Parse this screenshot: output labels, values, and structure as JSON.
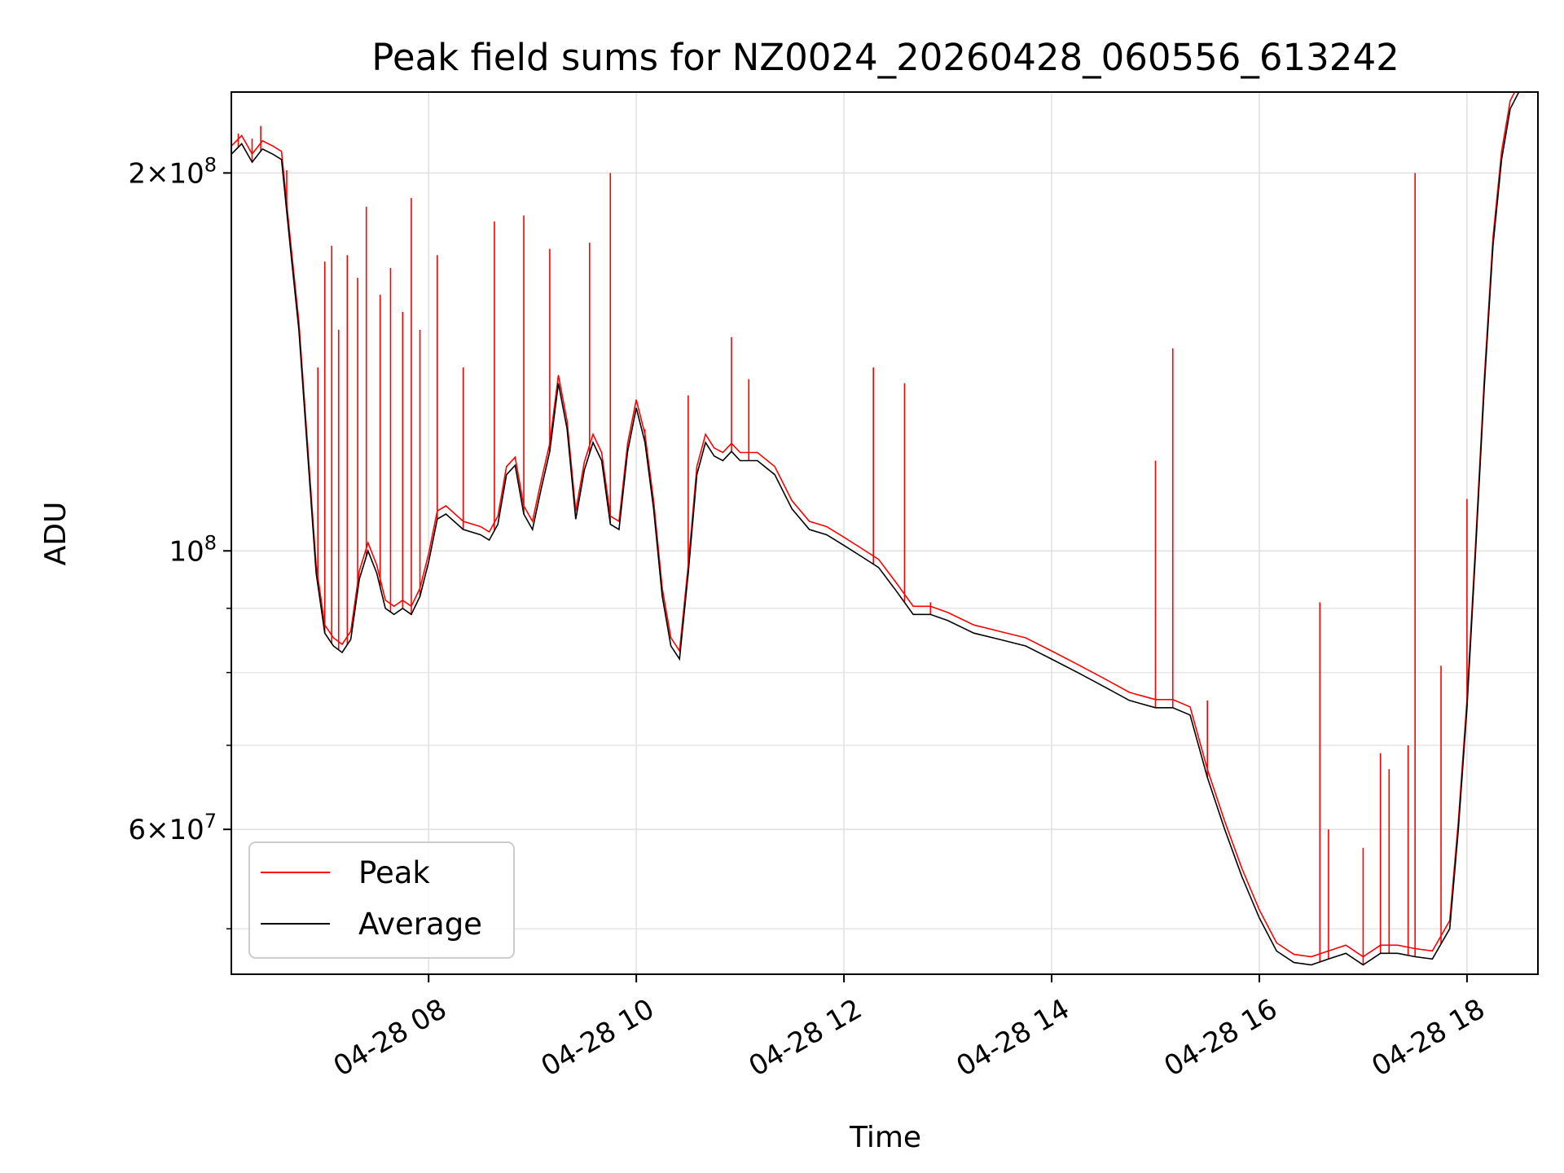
{
  "chart_data": {
    "type": "line",
    "title": "Peak field sums for NZ0024_20260428_060556_613242",
    "xlabel": "Time",
    "ylabel": "ADU",
    "y_scale": "log",
    "ylim": [
      46000000,
      232000000
    ],
    "xlim": [
      "2026-04-28 06:06",
      "2026-04-28 18:41"
    ],
    "grid": true,
    "legend_position": "lower-left",
    "x_ticks": [
      {
        "t": "2026-04-28 08:00",
        "label": "04-28 08"
      },
      {
        "t": "2026-04-28 10:00",
        "label": "04-28 10"
      },
      {
        "t": "2026-04-28 12:00",
        "label": "04-28 12"
      },
      {
        "t": "2026-04-28 14:00",
        "label": "04-28 14"
      },
      {
        "t": "2026-04-28 16:00",
        "label": "04-28 16"
      },
      {
        "t": "2026-04-28 18:00",
        "label": "04-28 18"
      }
    ],
    "y_major_ticks": [
      {
        "value": 60000000,
        "base": "6",
        "exp": "7"
      },
      {
        "value": 100000000,
        "base": "",
        "exp": "8"
      },
      {
        "value": 200000000,
        "base": "2",
        "exp": "8"
      }
    ],
    "y_minor_ticks": [
      50000000,
      70000000,
      80000000,
      90000000
    ],
    "series": [
      {
        "name": "Average",
        "color": "#000000",
        "points": [
          [
            "2026-04-28 06:06",
            207000000
          ],
          [
            "2026-04-28 06:12",
            211000000
          ],
          [
            "2026-04-28 06:18",
            204000000
          ],
          [
            "2026-04-28 06:24",
            209000000
          ],
          [
            "2026-04-28 06:30",
            207000000
          ],
          [
            "2026-04-28 06:35",
            205000000
          ],
          [
            "2026-04-28 06:40",
            175000000
          ],
          [
            "2026-04-28 06:45",
            150000000
          ],
          [
            "2026-04-28 06:50",
            120000000
          ],
          [
            "2026-04-28 06:55",
            96000000
          ],
          [
            "2026-04-28 07:00",
            86000000
          ],
          [
            "2026-04-28 07:05",
            84000000
          ],
          [
            "2026-04-28 07:10",
            83000000
          ],
          [
            "2026-04-28 07:15",
            85000000
          ],
          [
            "2026-04-28 07:20",
            95000000
          ],
          [
            "2026-04-28 07:25",
            100000000
          ],
          [
            "2026-04-28 07:30",
            96000000
          ],
          [
            "2026-04-28 07:35",
            90000000
          ],
          [
            "2026-04-28 07:40",
            89000000
          ],
          [
            "2026-04-28 07:45",
            90000000
          ],
          [
            "2026-04-28 07:50",
            89000000
          ],
          [
            "2026-04-28 07:55",
            92000000
          ],
          [
            "2026-04-28 08:00",
            98000000
          ],
          [
            "2026-04-28 08:05",
            106000000
          ],
          [
            "2026-04-28 08:10",
            107000000
          ],
          [
            "2026-04-28 08:20",
            104000000
          ],
          [
            "2026-04-28 08:30",
            103000000
          ],
          [
            "2026-04-28 08:35",
            102000000
          ],
          [
            "2026-04-28 08:40",
            105000000
          ],
          [
            "2026-04-28 08:45",
            115000000
          ],
          [
            "2026-04-28 08:50",
            117000000
          ],
          [
            "2026-04-28 08:55",
            107000000
          ],
          [
            "2026-04-28 09:00",
            104000000
          ],
          [
            "2026-04-28 09:05",
            112000000
          ],
          [
            "2026-04-28 09:10",
            120000000
          ],
          [
            "2026-04-28 09:15",
            136000000
          ],
          [
            "2026-04-28 09:20",
            125000000
          ],
          [
            "2026-04-28 09:25",
            106000000
          ],
          [
            "2026-04-28 09:30",
            116000000
          ],
          [
            "2026-04-28 09:35",
            122000000
          ],
          [
            "2026-04-28 09:40",
            118000000
          ],
          [
            "2026-04-28 09:45",
            105000000
          ],
          [
            "2026-04-28 09:50",
            104000000
          ],
          [
            "2026-04-28 09:55",
            120000000
          ],
          [
            "2026-04-28 10:00",
            130000000
          ],
          [
            "2026-04-28 10:05",
            122000000
          ],
          [
            "2026-04-28 10:10",
            108000000
          ],
          [
            "2026-04-28 10:15",
            92000000
          ],
          [
            "2026-04-28 10:20",
            84000000
          ],
          [
            "2026-04-28 10:25",
            82000000
          ],
          [
            "2026-04-28 10:30",
            96000000
          ],
          [
            "2026-04-28 10:35",
            115000000
          ],
          [
            "2026-04-28 10:40",
            122000000
          ],
          [
            "2026-04-28 10:45",
            119000000
          ],
          [
            "2026-04-28 10:50",
            118000000
          ],
          [
            "2026-04-28 10:55",
            120000000
          ],
          [
            "2026-04-28 11:00",
            118000000
          ],
          [
            "2026-04-28 11:10",
            118000000
          ],
          [
            "2026-04-28 11:20",
            115000000
          ],
          [
            "2026-04-28 11:30",
            108000000
          ],
          [
            "2026-04-28 11:40",
            104000000
          ],
          [
            "2026-04-28 11:50",
            103000000
          ],
          [
            "2026-04-28 12:00",
            101000000
          ],
          [
            "2026-04-28 12:10",
            99000000
          ],
          [
            "2026-04-28 12:20",
            97000000
          ],
          [
            "2026-04-28 12:30",
            93000000
          ],
          [
            "2026-04-28 12:40",
            89000000
          ],
          [
            "2026-04-28 12:50",
            89000000
          ],
          [
            "2026-04-28 13:00",
            88000000
          ],
          [
            "2026-04-28 13:15",
            86000000
          ],
          [
            "2026-04-28 13:30",
            85000000
          ],
          [
            "2026-04-28 13:45",
            84000000
          ],
          [
            "2026-04-28 14:00",
            82000000
          ],
          [
            "2026-04-28 14:15",
            80000000
          ],
          [
            "2026-04-28 14:30",
            78000000
          ],
          [
            "2026-04-28 14:45",
            76000000
          ],
          [
            "2026-04-28 15:00",
            75000000
          ],
          [
            "2026-04-28 15:10",
            75000000
          ],
          [
            "2026-04-28 15:20",
            74000000
          ],
          [
            "2026-04-28 15:30",
            66000000
          ],
          [
            "2026-04-28 15:40",
            60000000
          ],
          [
            "2026-04-28 15:50",
            55000000
          ],
          [
            "2026-04-28 16:00",
            51000000
          ],
          [
            "2026-04-28 16:10",
            48000000
          ],
          [
            "2026-04-28 16:20",
            47000000
          ],
          [
            "2026-04-28 16:30",
            46800000
          ],
          [
            "2026-04-28 16:40",
            47300000
          ],
          [
            "2026-04-28 16:50",
            47800000
          ],
          [
            "2026-04-28 17:00",
            46800000
          ],
          [
            "2026-04-28 17:10",
            47800000
          ],
          [
            "2026-04-28 17:20",
            47800000
          ],
          [
            "2026-04-28 17:30",
            47500000
          ],
          [
            "2026-04-28 17:40",
            47300000
          ],
          [
            "2026-04-28 17:50",
            50000000
          ],
          [
            "2026-04-28 17:55",
            60000000
          ],
          [
            "2026-04-28 18:00",
            75000000
          ],
          [
            "2026-04-28 18:05",
            100000000
          ],
          [
            "2026-04-28 18:10",
            135000000
          ],
          [
            "2026-04-28 18:15",
            175000000
          ],
          [
            "2026-04-28 18:20",
            205000000
          ],
          [
            "2026-04-28 18:25",
            225000000
          ],
          [
            "2026-04-28 18:30",
            232000000
          ],
          [
            "2026-04-28 18:41",
            232000000
          ]
        ]
      },
      {
        "name": "Peak",
        "color": "#ff0000",
        "baseline_offset": 1.015,
        "spikes": [
          [
            "2026-04-28 06:10",
            215000000
          ],
          [
            "2026-04-28 06:18",
            213000000
          ],
          [
            "2026-04-28 06:23",
            218000000
          ],
          [
            "2026-04-28 06:38",
            201000000
          ],
          [
            "2026-04-28 06:56",
            140000000
          ],
          [
            "2026-04-28 07:00",
            170000000
          ],
          [
            "2026-04-28 07:04",
            175000000
          ],
          [
            "2026-04-28 07:08",
            150000000
          ],
          [
            "2026-04-28 07:13",
            172000000
          ],
          [
            "2026-04-28 07:19",
            165000000
          ],
          [
            "2026-04-28 07:24",
            188000000
          ],
          [
            "2026-04-28 07:32",
            160000000
          ],
          [
            "2026-04-28 07:38",
            168000000
          ],
          [
            "2026-04-28 07:45",
            155000000
          ],
          [
            "2026-04-28 07:50",
            191000000
          ],
          [
            "2026-04-28 07:55",
            150000000
          ],
          [
            "2026-04-28 08:05",
            172000000
          ],
          [
            "2026-04-28 08:20",
            140000000
          ],
          [
            "2026-04-28 08:38",
            183000000
          ],
          [
            "2026-04-28 08:55",
            185000000
          ],
          [
            "2026-04-28 09:10",
            174000000
          ],
          [
            "2026-04-28 09:33",
            176000000
          ],
          [
            "2026-04-28 09:45",
            200000000
          ],
          [
            "2026-04-28 10:05",
            125000000
          ],
          [
            "2026-04-28 10:30",
            133000000
          ],
          [
            "2026-04-28 10:55",
            148000000
          ],
          [
            "2026-04-28 11:05",
            137000000
          ],
          [
            "2026-04-28 12:17",
            140000000
          ],
          [
            "2026-04-28 12:35",
            136000000
          ],
          [
            "2026-04-28 12:50",
            91000000
          ],
          [
            "2026-04-28 15:00",
            118000000
          ],
          [
            "2026-04-28 15:10",
            145000000
          ],
          [
            "2026-04-28 15:30",
            76000000
          ],
          [
            "2026-04-28 16:35",
            91000000
          ],
          [
            "2026-04-28 16:40",
            60000000
          ],
          [
            "2026-04-28 17:00",
            58000000
          ],
          [
            "2026-04-28 17:10",
            69000000
          ],
          [
            "2026-04-28 17:15",
            67000000
          ],
          [
            "2026-04-28 17:26",
            70000000
          ],
          [
            "2026-04-28 17:30",
            200000000
          ],
          [
            "2026-04-28 17:45",
            81000000
          ],
          [
            "2026-04-28 18:00",
            110000000
          ]
        ]
      }
    ],
    "legend": [
      {
        "name": "Peak",
        "color": "#ff0000"
      },
      {
        "name": "Average",
        "color": "#000000"
      }
    ]
  }
}
